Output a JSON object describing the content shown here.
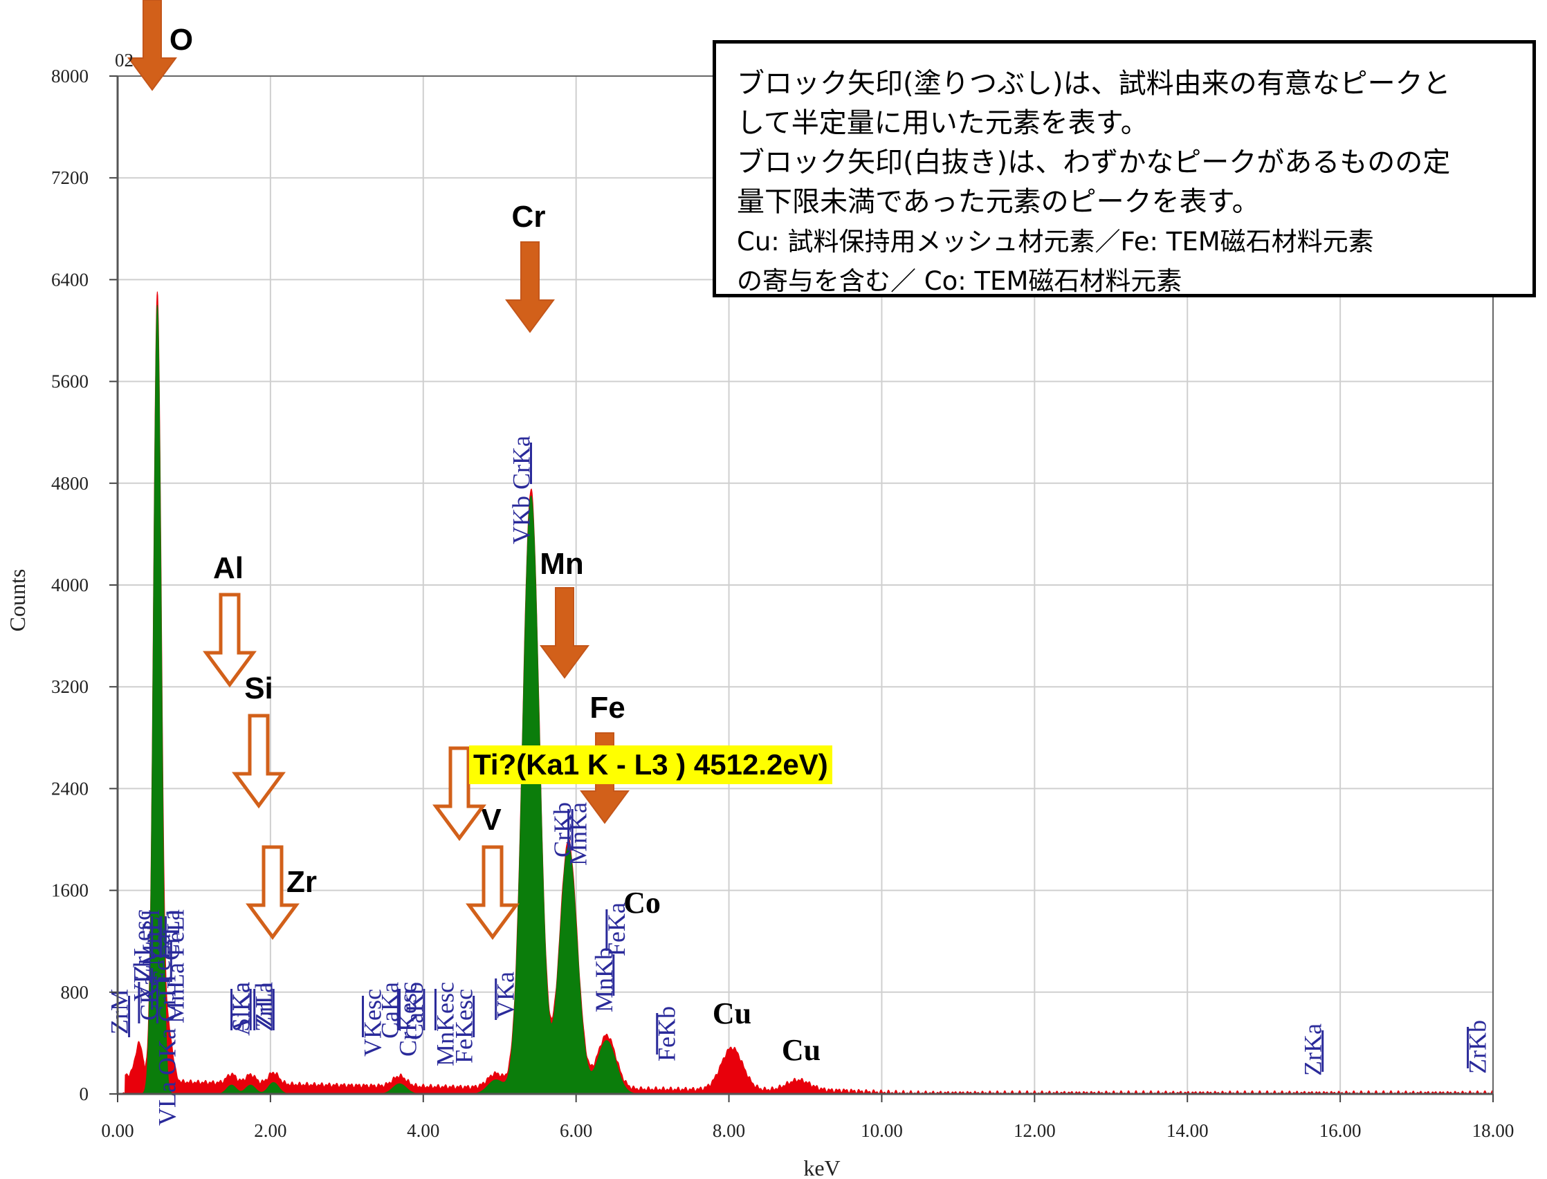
{
  "chart_data": {
    "type": "area",
    "title": "",
    "xlabel": "keV",
    "ylabel": "Counts",
    "xlim": [
      0,
      18
    ],
    "ylim": [
      0,
      8000
    ],
    "x_ticks": [
      "0.00",
      "2.00",
      "4.00",
      "6.00",
      "8.00",
      "10.00",
      "12.00",
      "14.00",
      "16.00",
      "18.00"
    ],
    "y_ticks": [
      "0",
      "800",
      "1600",
      "2400",
      "3200",
      "4000",
      "4800",
      "5600",
      "6400",
      "7200",
      "8000"
    ],
    "grid": true,
    "colors": {
      "spectrum": "#e8000b",
      "identified_peaks": "#0b7d0b",
      "peak_marker": "#2a2a9a",
      "arrow": "#d2601a",
      "highlight": "#ffff00"
    },
    "spectrum_peaks": [
      {
        "kev": 0.52,
        "counts": 6200,
        "series": "identified"
      },
      {
        "kev": 5.41,
        "counts": 4700,
        "series": "identified"
      },
      {
        "kev": 5.9,
        "counts": 1950,
        "series": "identified"
      },
      {
        "kev": 6.4,
        "counts": 420,
        "series": "identified"
      },
      {
        "kev": 4.95,
        "counts": 110,
        "series": "identified"
      },
      {
        "kev": 1.49,
        "counts": 70,
        "series": "identified"
      },
      {
        "kev": 1.74,
        "counts": 70,
        "series": "identified"
      },
      {
        "kev": 2.04,
        "counts": 90,
        "series": "identified"
      },
      {
        "kev": 3.69,
        "counts": 80,
        "series": "identified"
      },
      {
        "kev": 0.67,
        "counts": 380,
        "series": "background"
      },
      {
        "kev": 0.28,
        "counts": 250,
        "series": "background"
      },
      {
        "kev": 8.04,
        "counts": 330,
        "series": "background"
      },
      {
        "kev": 8.91,
        "counts": 80,
        "series": "background"
      }
    ],
    "peak_markers": [
      {
        "label": "ZrM",
        "kev": 0.15
      },
      {
        "label": "CKa",
        "kev": 0.28
      },
      {
        "label": "VLl",
        "kev": 0.45
      },
      {
        "label": "VLa OKa CrLl",
        "kev": 0.52
      },
      {
        "label": "ZrLesc",
        "kev": 0.45
      },
      {
        "label": "CrLa",
        "kev": 0.57
      },
      {
        "label": "MnLl",
        "kev": 0.56
      },
      {
        "label": "MnLa FeLl",
        "kev": 0.63
      },
      {
        "label": "FeLa",
        "kev": 0.7
      },
      {
        "label": "AlKa",
        "kev": 1.49
      },
      {
        "label": "SiKa",
        "kev": 1.74
      },
      {
        "label": "ZrLl",
        "kev": 1.79
      },
      {
        "label": "ZrLa",
        "kev": 2.04
      },
      {
        "label": "VKesc",
        "kev": 3.21
      },
      {
        "label": "CaKa",
        "kev": 3.69
      },
      {
        "label": "CrKesc",
        "kev": 3.67
      },
      {
        "label": "CaKb",
        "kev": 4.01
      },
      {
        "label": "MnKesc",
        "kev": 4.16
      },
      {
        "label": "FeKesc",
        "kev": 4.66
      },
      {
        "label": "VKa",
        "kev": 4.95
      },
      {
        "label": "VKb CrKa",
        "kev": 5.41
      },
      {
        "label": "MnKa",
        "kev": 5.9
      },
      {
        "label": "CrKb",
        "kev": 5.95
      },
      {
        "label": "FeKa",
        "kev": 6.4
      },
      {
        "label": "MnKb",
        "kev": 6.49
      },
      {
        "label": "FeKb",
        "kev": 7.06
      },
      {
        "label": "ZrKa",
        "kev": 15.77
      },
      {
        "label": "ZrKb",
        "kev": 17.67
      }
    ],
    "element_annotations": [
      {
        "label": "O",
        "arrow": "filled"
      },
      {
        "label": "Cr",
        "arrow": "filled"
      },
      {
        "label": "Mn",
        "arrow": "filled"
      },
      {
        "label": "Fe",
        "arrow": "filled"
      },
      {
        "label": "Al",
        "arrow": "outline"
      },
      {
        "label": "Si",
        "arrow": "outline"
      },
      {
        "label": "Zr",
        "arrow": "outline"
      },
      {
        "label": "V",
        "arrow": "outline"
      },
      {
        "label": "Co",
        "arrow": "none"
      },
      {
        "label": "Cu",
        "arrow": "none"
      },
      {
        "label": "Cu",
        "arrow": "none"
      }
    ],
    "corner_fragment": "02"
  },
  "ti_note": "Ti?(Ka1   K - L3 ) 4512.2eV)",
  "legend_note": [
    "ブロック矢印(塗りつぶし)は、試料由来の有意なピークと",
    "して半定量に用いた元素を表す。",
    "ブロック矢印(白抜き)は、わずかなピークがあるものの定",
    "量下限未満であった元素のピークを表す。",
    "Cu: 試料保持用メッシュ材元素／Fe: TEM磁石材料元素",
    "の寄与を含む／ Co: TEM磁石材料元素"
  ]
}
